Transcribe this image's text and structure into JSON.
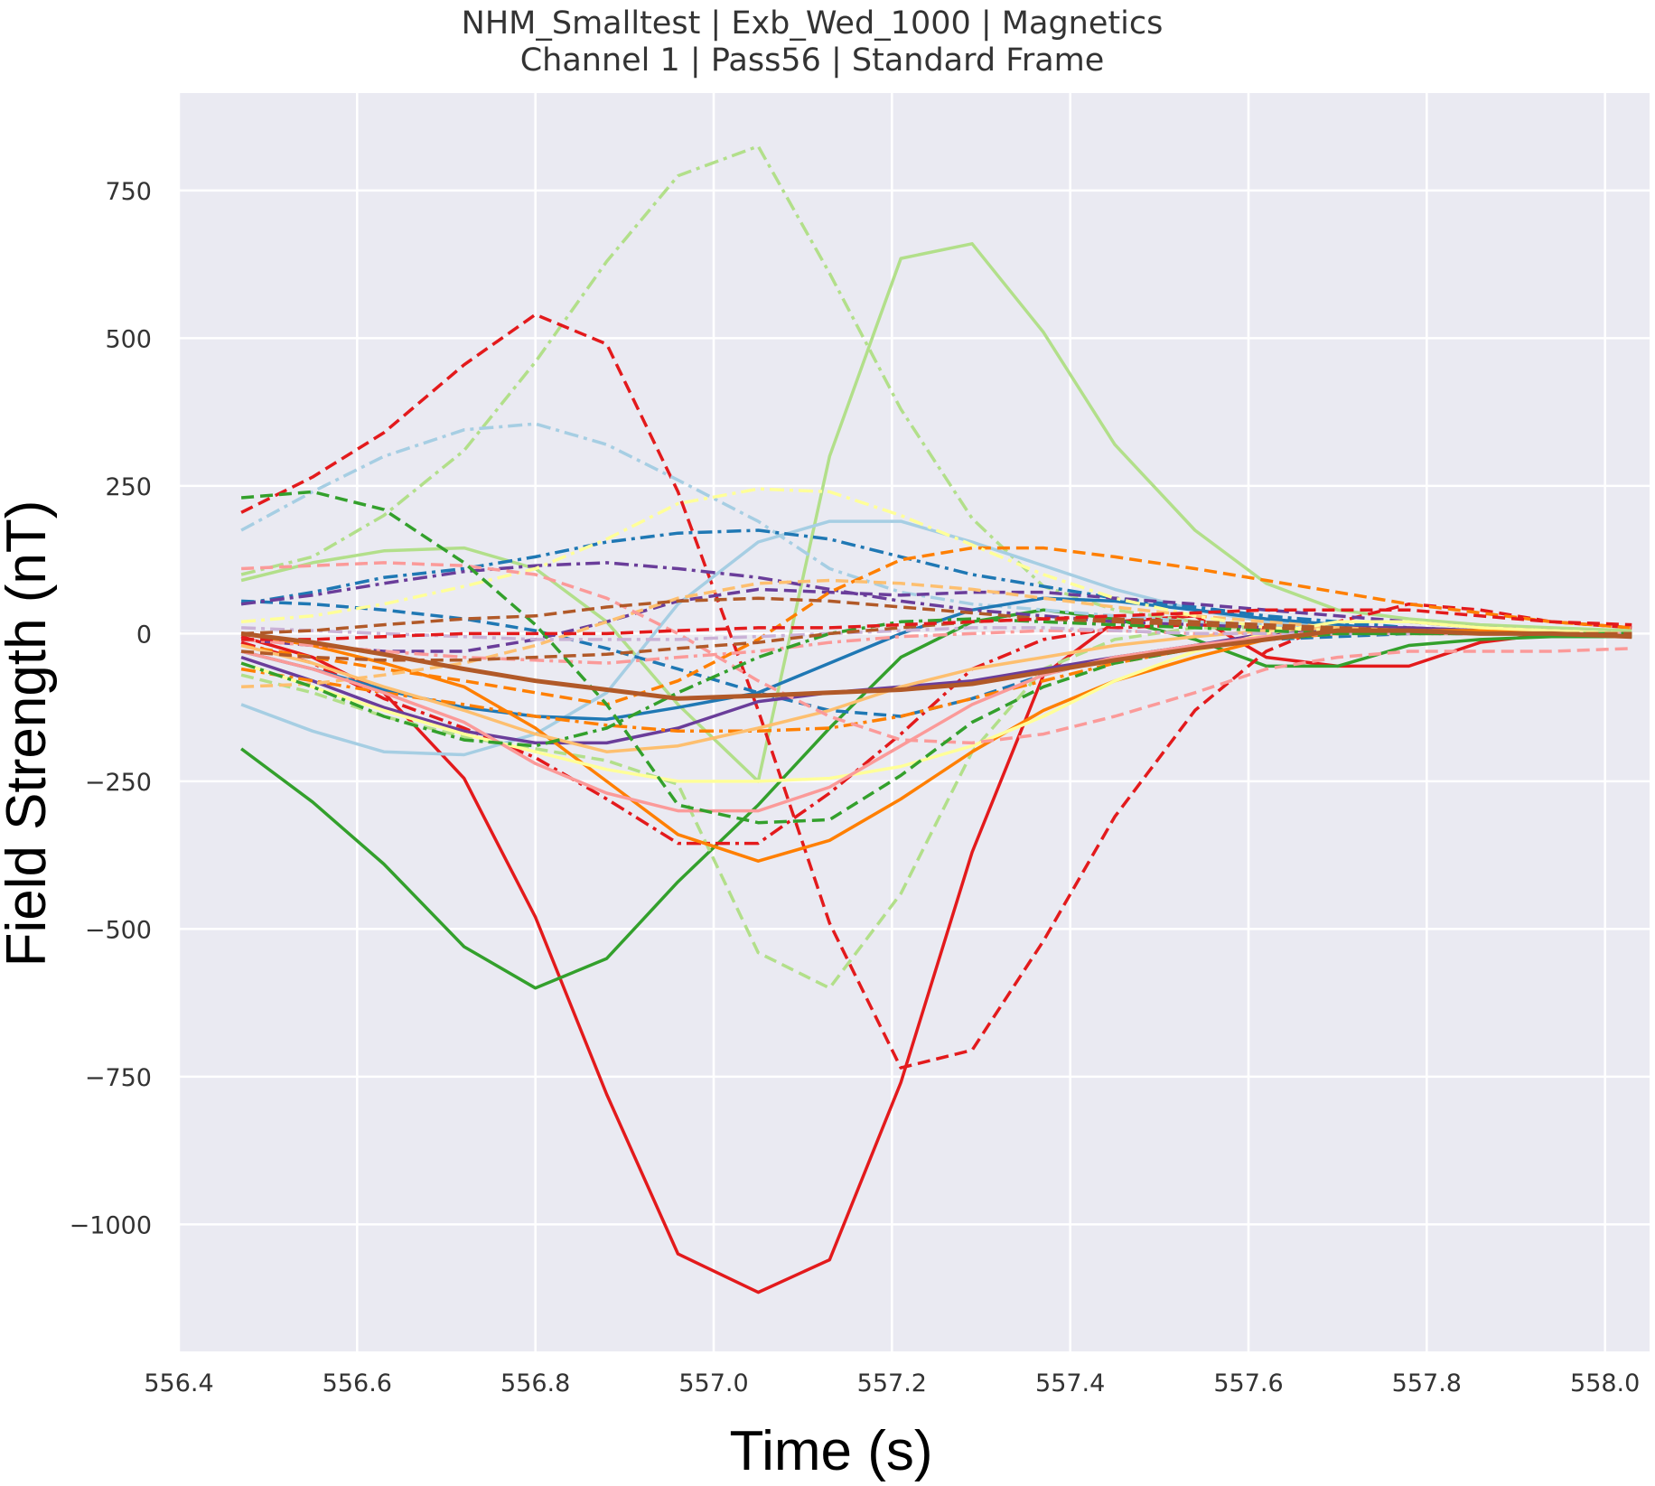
{
  "chart_data": {
    "type": "line",
    "title": "NHM_Smalltest | Exb_Wed_1000 | Magnetics",
    "subtitle": "Channel 1 | Pass56 | Standard Frame",
    "xlabel": "Time (s)",
    "ylabel": "Field Strength (nT)",
    "xlim": [
      556.4,
      558.05
    ],
    "ylim": [
      -1215,
      915
    ],
    "xticks": [
      556.4,
      556.6,
      556.8,
      557.0,
      557.2,
      557.4,
      557.6,
      557.8,
      558.0
    ],
    "xtick_labels": [
      "556.4",
      "556.6",
      "556.8",
      "557.0",
      "557.2",
      "557.4",
      "557.6",
      "557.8",
      "558.0"
    ],
    "yticks": [
      750,
      500,
      250,
      0,
      -250,
      -500,
      -750,
      -1000
    ],
    "ytick_labels": [
      "750",
      "500",
      "250",
      "0",
      "−250",
      "−500",
      "−750",
      "−1000"
    ],
    "grid": true,
    "background": "#eaeaf2",
    "x": [
      556.47,
      556.55,
      556.63,
      556.72,
      556.8,
      556.88,
      556.96,
      557.05,
      557.13,
      557.21,
      557.29,
      557.37,
      557.45,
      557.54,
      557.62,
      557.7,
      557.78,
      557.86,
      557.94,
      558.03
    ],
    "series": [
      {
        "color": "#e31a1c",
        "dash": "solid",
        "width": 3.5,
        "values": [
          -5,
          -40,
          -100,
          -245,
          -480,
          -780,
          -1050,
          -1115,
          -1060,
          -760,
          -370,
          -70,
          20,
          30,
          -40,
          -55,
          -55,
          -15,
          0,
          -5
        ]
      },
      {
        "color": "#33a02c",
        "dash": "solid",
        "width": 3.5,
        "values": [
          -195,
          -285,
          -390,
          -530,
          -600,
          -550,
          -420,
          -290,
          -160,
          -40,
          20,
          40,
          25,
          -10,
          -55,
          -55,
          -20,
          -10,
          -5,
          -5
        ]
      },
      {
        "color": "#b2df8a",
        "dash": "solid",
        "width": 3.5,
        "values": [
          90,
          120,
          140,
          145,
          110,
          20,
          -120,
          -250,
          300,
          635,
          660,
          510,
          320,
          175,
          85,
          40,
          25,
          15,
          10,
          5
        ]
      },
      {
        "color": "#b2df8a",
        "dash": "dashdot",
        "width": 3.5,
        "values": [
          100,
          130,
          200,
          310,
          460,
          630,
          775,
          825,
          610,
          380,
          195,
          80,
          40,
          20,
          10,
          5,
          5,
          0,
          0,
          0
        ]
      },
      {
        "color": "#e31a1c",
        "dash": "dashed",
        "width": 3.5,
        "values": [
          205,
          265,
          340,
          455,
          540,
          490,
          240,
          -130,
          -490,
          -735,
          -705,
          -520,
          -310,
          -130,
          -30,
          20,
          50,
          40,
          20,
          10
        ]
      },
      {
        "color": "#b2df8a",
        "dash": "dashed",
        "width": 3.5,
        "values": [
          -70,
          -100,
          -140,
          -175,
          -195,
          -215,
          -255,
          -540,
          -600,
          -440,
          -200,
          -60,
          -10,
          10,
          10,
          5,
          5,
          0,
          0,
          0
        ]
      },
      {
        "color": "#e31a1c",
        "dash": "dashdot",
        "width": 3.5,
        "values": [
          -15,
          -50,
          -110,
          -160,
          -210,
          -280,
          -355,
          -355,
          -270,
          -170,
          -60,
          -10,
          10,
          15,
          10,
          5,
          0,
          0,
          0,
          0
        ]
      },
      {
        "color": "#a6cee3",
        "dash": "dashdot",
        "width": 3.5,
        "values": [
          175,
          240,
          300,
          345,
          355,
          320,
          260,
          190,
          110,
          70,
          50,
          40,
          30,
          20,
          15,
          10,
          5,
          5,
          0,
          0
        ]
      },
      {
        "color": "#a6cee3",
        "dash": "solid",
        "width": 3.5,
        "values": [
          -120,
          -165,
          -200,
          -205,
          -170,
          -100,
          50,
          155,
          190,
          190,
          155,
          115,
          75,
          40,
          20,
          10,
          5,
          0,
          0,
          0
        ]
      },
      {
        "color": "#1f78b4",
        "dash": "dashdot",
        "width": 3.5,
        "values": [
          50,
          70,
          95,
          110,
          130,
          155,
          170,
          175,
          160,
          130,
          100,
          80,
          60,
          45,
          30,
          20,
          10,
          5,
          0,
          0
        ]
      },
      {
        "color": "#1f78b4",
        "dash": "solid",
        "width": 3.5,
        "values": [
          -30,
          -60,
          -95,
          -125,
          -140,
          -145,
          -125,
          -100,
          -50,
          0,
          40,
          60,
          55,
          40,
          25,
          15,
          5,
          0,
          0,
          0
        ]
      },
      {
        "color": "#1f78b4",
        "dash": "dashed",
        "width": 3.5,
        "values": [
          55,
          50,
          40,
          25,
          5,
          -25,
          -60,
          -100,
          -130,
          -140,
          -110,
          -70,
          -40,
          -20,
          -10,
          -5,
          0,
          0,
          0,
          0
        ]
      },
      {
        "color": "#6a3d9a",
        "dash": "dashdot",
        "width": 3.5,
        "values": [
          50,
          65,
          85,
          105,
          115,
          120,
          110,
          95,
          75,
          55,
          40,
          30,
          20,
          15,
          10,
          5,
          5,
          0,
          0,
          0
        ]
      },
      {
        "color": "#6a3d9a",
        "dash": "solid",
        "width": 3.5,
        "values": [
          -40,
          -80,
          -125,
          -165,
          -185,
          -185,
          -160,
          -115,
          -100,
          -90,
          -80,
          -60,
          -40,
          -20,
          0,
          10,
          10,
          5,
          0,
          0
        ]
      },
      {
        "color": "#6a3d9a",
        "dash": "dashed",
        "width": 3.5,
        "values": [
          -10,
          -20,
          -30,
          -30,
          -10,
          20,
          55,
          75,
          70,
          65,
          70,
          70,
          60,
          50,
          40,
          30,
          20,
          10,
          5,
          0
        ]
      },
      {
        "color": "#ff7f00",
        "dash": "solid",
        "width": 3.5,
        "values": [
          0,
          -20,
          -50,
          -90,
          -160,
          -250,
          -340,
          -385,
          -350,
          -280,
          -200,
          -130,
          -80,
          -40,
          -10,
          0,
          5,
          5,
          0,
          0
        ]
      },
      {
        "color": "#ff7f00",
        "dash": "dashed",
        "width": 3.5,
        "values": [
          -20,
          -40,
          -60,
          -80,
          -100,
          -120,
          -80,
          -10,
          70,
          125,
          145,
          145,
          130,
          110,
          90,
          70,
          50,
          35,
          20,
          10
        ]
      },
      {
        "color": "#ff7f00",
        "dash": "dashdot",
        "width": 3.5,
        "values": [
          -60,
          -80,
          -100,
          -120,
          -140,
          -155,
          -165,
          -165,
          -160,
          -140,
          -110,
          -80,
          -50,
          -25,
          -10,
          0,
          5,
          5,
          0,
          0
        ]
      },
      {
        "color": "#fdbf6f",
        "dash": "dashed",
        "width": 3.5,
        "values": [
          -90,
          -85,
          -70,
          -50,
          -20,
          20,
          60,
          85,
          90,
          85,
          75,
          60,
          45,
          30,
          20,
          10,
          5,
          0,
          0,
          0
        ]
      },
      {
        "color": "#fdbf6f",
        "dash": "solid",
        "width": 3.5,
        "values": [
          -20,
          -50,
          -90,
          -130,
          -170,
          -200,
          -190,
          -160,
          -130,
          -90,
          -60,
          -40,
          -20,
          -5,
          5,
          10,
          5,
          0,
          0,
          0
        ]
      },
      {
        "color": "#ffff99",
        "dash": "dashdot",
        "width": 3.5,
        "values": [
          20,
          30,
          50,
          80,
          110,
          160,
          220,
          245,
          240,
          200,
          150,
          100,
          60,
          30,
          10,
          5,
          0,
          0,
          0,
          0
        ]
      },
      {
        "color": "#ffff99",
        "dash": "solid",
        "width": 3.5,
        "values": [
          -50,
          -90,
          -130,
          -170,
          -200,
          -230,
          -250,
          -250,
          -245,
          -225,
          -190,
          -140,
          -80,
          -30,
          0,
          20,
          20,
          10,
          5,
          0
        ]
      },
      {
        "color": "#fb9a99",
        "dash": "solid",
        "width": 3.5,
        "values": [
          -30,
          -60,
          -100,
          -150,
          -220,
          -270,
          -300,
          -300,
          -260,
          -190,
          -120,
          -70,
          -40,
          -20,
          -5,
          0,
          5,
          0,
          0,
          0
        ]
      },
      {
        "color": "#fb9a99",
        "dash": "dashed",
        "width": 3.5,
        "values": [
          110,
          115,
          120,
          115,
          100,
          60,
          0,
          -80,
          -140,
          -180,
          -185,
          -170,
          -140,
          -100,
          -60,
          -40,
          -30,
          -30,
          -30,
          -25
        ]
      },
      {
        "color": "#fb9a99",
        "dash": "dashdot",
        "width": 3.5,
        "values": [
          -10,
          -20,
          -30,
          -40,
          -45,
          -50,
          -40,
          -30,
          -15,
          -5,
          0,
          5,
          5,
          0,
          0,
          0,
          0,
          0,
          0,
          0
        ]
      },
      {
        "color": "#cab2d6",
        "dash": "dashdot",
        "width": 3.5,
        "values": [
          10,
          5,
          0,
          -5,
          -10,
          -10,
          -10,
          -5,
          0,
          5,
          10,
          10,
          5,
          0,
          0,
          0,
          0,
          0,
          0,
          0
        ]
      },
      {
        "color": "#33a02c",
        "dash": "dashed",
        "width": 3.5,
        "values": [
          230,
          240,
          210,
          120,
          15,
          -120,
          -290,
          -320,
          -315,
          -240,
          -150,
          -90,
          -50,
          -25,
          -10,
          0,
          0,
          0,
          0,
          0
        ]
      },
      {
        "color": "#33a02c",
        "dash": "dashdot",
        "width": 3.5,
        "values": [
          -50,
          -90,
          -140,
          -180,
          -190,
          -160,
          -100,
          -40,
          0,
          20,
          25,
          20,
          15,
          10,
          5,
          0,
          0,
          0,
          0,
          0
        ]
      },
      {
        "color": "#b15928",
        "dash": "dashed",
        "width": 3.5,
        "values": [
          0,
          5,
          15,
          25,
          30,
          45,
          55,
          60,
          55,
          45,
          35,
          25,
          20,
          15,
          10,
          5,
          5,
          0,
          0,
          0
        ]
      },
      {
        "color": "#b15928",
        "dash": "dashed",
        "width": 3.5,
        "values": [
          -30,
          -40,
          -45,
          -45,
          -40,
          -35,
          -25,
          -15,
          0,
          10,
          20,
          25,
          25,
          20,
          15,
          10,
          5,
          0,
          0,
          0
        ]
      },
      {
        "color": "#e31a1c",
        "dash": "dashed",
        "width": 3.5,
        "values": [
          -10,
          -10,
          -5,
          0,
          0,
          0,
          5,
          10,
          10,
          15,
          20,
          25,
          30,
          35,
          40,
          40,
          40,
          30,
          20,
          15
        ]
      },
      {
        "color": "#b15928",
        "dash": "solid",
        "width": 5,
        "values": [
          0,
          -15,
          -35,
          -60,
          -80,
          -95,
          -110,
          -105,
          -100,
          -95,
          -85,
          -65,
          -45,
          -25,
          -10,
          5,
          5,
          0,
          0,
          -5
        ]
      }
    ]
  }
}
